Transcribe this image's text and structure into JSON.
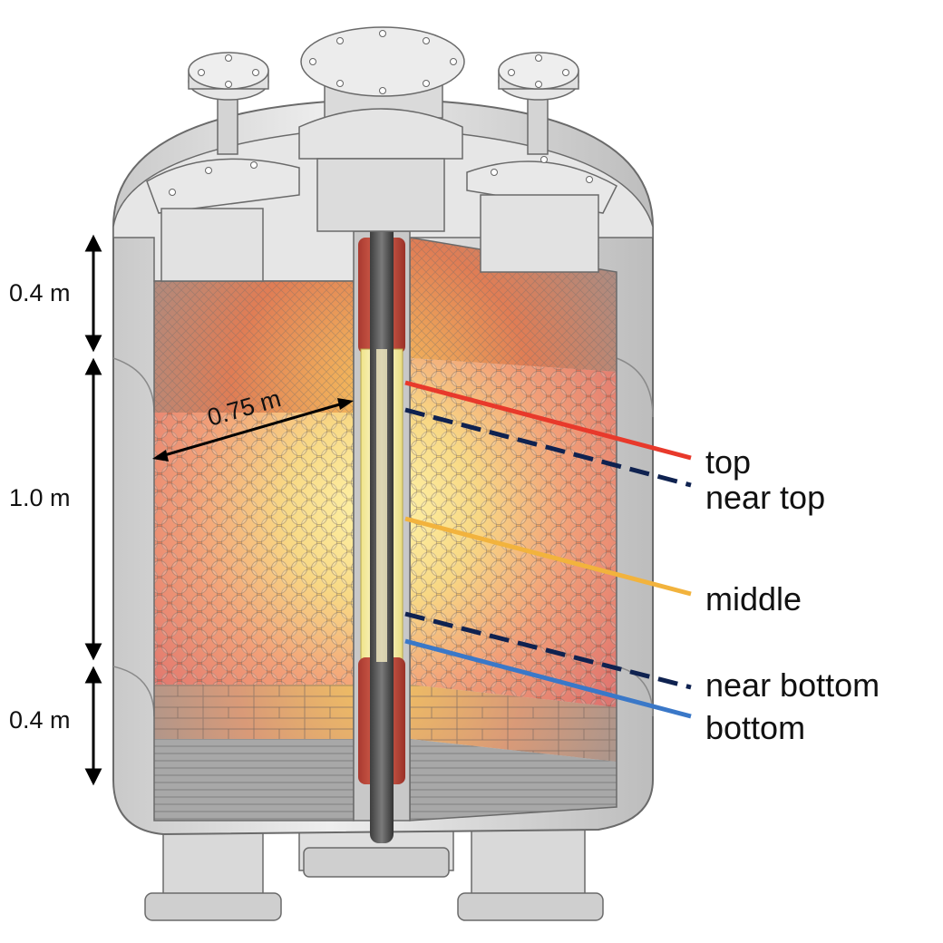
{
  "dimensions": {
    "upper_zone": "0.4 m",
    "bed_height": "1.0 m",
    "lower_zone": "0.4 m",
    "radius": "0.75 m"
  },
  "probes": [
    {
      "label": "top",
      "color": "#e8392b",
      "style": "solid"
    },
    {
      "label": "near top",
      "color": "#0f2250",
      "style": "dashed"
    },
    {
      "label": "middle",
      "color": "#f2b33d",
      "style": "solid"
    },
    {
      "label": "near bottom",
      "color": "#0f2250",
      "style": "dashed"
    },
    {
      "label": "bottom",
      "color": "#3a78c8",
      "style": "solid"
    }
  ]
}
